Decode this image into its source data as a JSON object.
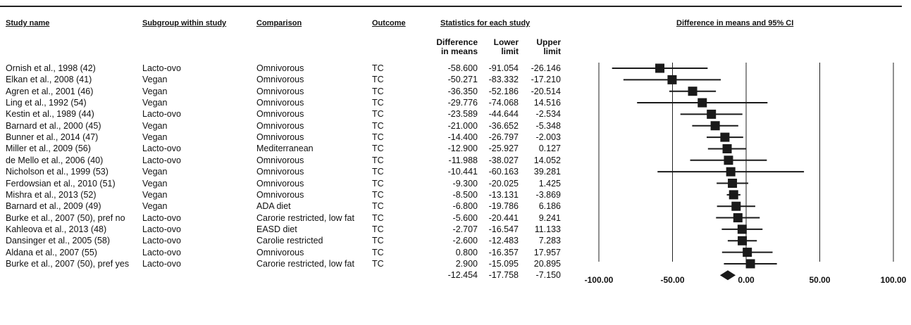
{
  "headers": {
    "study": "Study name",
    "subgroup": "Subgroup within study",
    "comparison": "Comparison",
    "outcome": "Outcome",
    "stats": "Statistics for each study",
    "plot": "Difference in means and 95% CI",
    "diff_line1": "Difference",
    "diff_line2": "in means",
    "lower_line1": "Lower",
    "lower_line2": "limit",
    "upper_line1": "Upper",
    "upper_line2": "limit"
  },
  "chart_data": {
    "type": "forest",
    "xlim": [
      -100,
      100
    ],
    "x_ticks": [
      "-100.00",
      "-50.00",
      "0.00",
      "50.00",
      "100.00"
    ],
    "studies": [
      {
        "name": "Ornish et al., 1998 (42)",
        "subgroup": "Lacto-ovo",
        "comparison": "Omnivorous",
        "outcome": "TC",
        "diff": -58.6,
        "lower": -91.054,
        "upper": -26.146,
        "diff_t": "-58.600",
        "lower_t": "-91.054",
        "upper_t": "-26.146"
      },
      {
        "name": "Elkan et al., 2008 (41)",
        "subgroup": "Vegan",
        "comparison": "Omnivorous",
        "outcome": "TC",
        "diff": -50.271,
        "lower": -83.332,
        "upper": -17.21,
        "diff_t": "-50.271",
        "lower_t": "-83.332",
        "upper_t": "-17.210"
      },
      {
        "name": "Agren et al., 2001 (46)",
        "subgroup": "Vegan",
        "comparison": "Omnivorous",
        "outcome": "TC",
        "diff": -36.35,
        "lower": -52.186,
        "upper": -20.514,
        "diff_t": "-36.350",
        "lower_t": "-52.186",
        "upper_t": "-20.514"
      },
      {
        "name": "Ling et al., 1992 (54)",
        "subgroup": "Vegan",
        "comparison": "Omnivorous",
        "outcome": "TC",
        "diff": -29.776,
        "lower": -74.068,
        "upper": 14.516,
        "diff_t": "-29.776",
        "lower_t": "-74.068",
        "upper_t": "14.516"
      },
      {
        "name": "Kestin et al., 1989 (44)",
        "subgroup": "Lacto-ovo",
        "comparison": "Omnivorous",
        "outcome": "TC",
        "diff": -23.589,
        "lower": -44.644,
        "upper": -2.534,
        "diff_t": "-23.589",
        "lower_t": "-44.644",
        "upper_t": "-2.534"
      },
      {
        "name": "Barnard et al., 2000 (45)",
        "subgroup": "Vegan",
        "comparison": "Omnivorous",
        "outcome": "TC",
        "diff": -21.0,
        "lower": -36.652,
        "upper": -5.348,
        "diff_t": "-21.000",
        "lower_t": "-36.652",
        "upper_t": "-5.348"
      },
      {
        "name": "Bunner et al., 2014 (47)",
        "subgroup": "Vegan",
        "comparison": "Omnivorous",
        "outcome": "TC",
        "diff": -14.4,
        "lower": -26.797,
        "upper": -2.003,
        "diff_t": "-14.400",
        "lower_t": "-26.797",
        "upper_t": "-2.003"
      },
      {
        "name": "Miller et al., 2009 (56)",
        "subgroup": "Lacto-ovo",
        "comparison": "Mediterranean",
        "outcome": "TC",
        "diff": -12.9,
        "lower": -25.927,
        "upper": 0.127,
        "diff_t": "-12.900",
        "lower_t": "-25.927",
        "upper_t": "0.127"
      },
      {
        "name": "de Mello et al., 2006 (40)",
        "subgroup": "Lacto-ovo",
        "comparison": "Omnivorous",
        "outcome": "TC",
        "diff": -11.988,
        "lower": -38.027,
        "upper": 14.052,
        "diff_t": "-11.988",
        "lower_t": "-38.027",
        "upper_t": "14.052"
      },
      {
        "name": "Nicholson et al., 1999 (53)",
        "subgroup": "Vegan",
        "comparison": "Omnivorous",
        "outcome": "TC",
        "diff": -10.441,
        "lower": -60.163,
        "upper": 39.281,
        "diff_t": "-10.441",
        "lower_t": "-60.163",
        "upper_t": "39.281"
      },
      {
        "name": "Ferdowsian et al., 2010 (51)",
        "subgroup": "Vegan",
        "comparison": "Omnivorous",
        "outcome": "TC",
        "diff": -9.3,
        "lower": -20.025,
        "upper": 1.425,
        "diff_t": "-9.300",
        "lower_t": "-20.025",
        "upper_t": "1.425"
      },
      {
        "name": "Mishra et al., 2013 (52)",
        "subgroup": "Vegan",
        "comparison": "Omnivorous",
        "outcome": "TC",
        "diff": -8.5,
        "lower": -13.131,
        "upper": -3.869,
        "diff_t": "-8.500",
        "lower_t": "-13.131",
        "upper_t": "-3.869"
      },
      {
        "name": "Barnard et al., 2009 (49)",
        "subgroup": "Vegan",
        "comparison": "ADA diet",
        "outcome": "TC",
        "diff": -6.8,
        "lower": -19.786,
        "upper": 6.186,
        "diff_t": "-6.800",
        "lower_t": "-19.786",
        "upper_t": "6.186"
      },
      {
        "name": "Burke et al., 2007 (50), pref no",
        "subgroup": "Lacto-ovo",
        "comparison": "Carorie restricted, low fat",
        "outcome": "TC",
        "diff": -5.6,
        "lower": -20.441,
        "upper": 9.241,
        "diff_t": "-5.600",
        "lower_t": "-20.441",
        "upper_t": "9.241"
      },
      {
        "name": "Kahleova et al., 2013 (48)",
        "subgroup": "Lacto-ovo",
        "comparison": "EASD diet",
        "outcome": "TC",
        "diff": -2.707,
        "lower": -16.547,
        "upper": 11.133,
        "diff_t": "-2.707",
        "lower_t": "-16.547",
        "upper_t": "11.133"
      },
      {
        "name": "Dansinger et al., 2005 (58)",
        "subgroup": "Lacto-ovo",
        "comparison": "Carolie restricted",
        "outcome": "TC",
        "diff": -2.6,
        "lower": -12.483,
        "upper": 7.283,
        "diff_t": "-2.600",
        "lower_t": "-12.483",
        "upper_t": "7.283"
      },
      {
        "name": "Aldana et al., 2007 (55)",
        "subgroup": "Lacto-ovo",
        "comparison": "Omnivorous",
        "outcome": "TC",
        "diff": 0.8,
        "lower": -16.357,
        "upper": 17.957,
        "diff_t": "0.800",
        "lower_t": "-16.357",
        "upper_t": "17.957"
      },
      {
        "name": "Burke et al., 2007 (50), pref yes",
        "subgroup": "Lacto-ovo",
        "comparison": "Carorie restricted, low fat",
        "outcome": "TC",
        "diff": 2.9,
        "lower": -15.095,
        "upper": 20.895,
        "diff_t": "2.900",
        "lower_t": "-15.095",
        "upper_t": "20.895"
      }
    ],
    "pooled": {
      "diff": -12.454,
      "lower": -17.758,
      "upper": -7.15,
      "diff_t": "-12.454",
      "lower_t": "-17.758",
      "upper_t": "-7.150"
    },
    "colors": {
      "marker": "#1a1a1a",
      "line": "#1a1a1a"
    }
  }
}
